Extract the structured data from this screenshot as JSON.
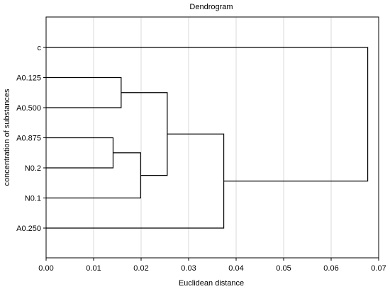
{
  "chart_data": {
    "type": "dendrogram",
    "title": "Dendrogram",
    "xlabel": "Euclidean distance",
    "ylabel": "concentration of substances",
    "xlim": [
      0.0,
      0.07
    ],
    "xticks": [
      "0.00",
      "0.01",
      "0.02",
      "0.03",
      "0.04",
      "0.05",
      "0.06",
      "0.07"
    ],
    "grid": true,
    "leaves": [
      "c",
      "A0.125",
      "A0.500",
      "A0.875",
      "N0.2",
      "N0.1",
      "A0.250"
    ],
    "merges": [
      {
        "left": "A0.875",
        "right": "N0.2",
        "distance": 0.0141
      },
      {
        "left": "A0.125",
        "right": "A0.500",
        "distance": 0.0158
      },
      {
        "left": "A0.875+N0.2",
        "right": "N0.1",
        "distance": 0.0199
      },
      {
        "left": "A0.125+A0.500",
        "right": "A0.875+N0.2+N0.1",
        "distance": 0.0255
      },
      {
        "left": "A0.125+A0.500+A0.875+N0.2+N0.1",
        "right": "A0.250",
        "distance": 0.0374
      },
      {
        "left": "c",
        "right": "A0.125+A0.500+A0.875+N0.2+N0.1+A0.250",
        "distance": 0.0677
      }
    ]
  }
}
